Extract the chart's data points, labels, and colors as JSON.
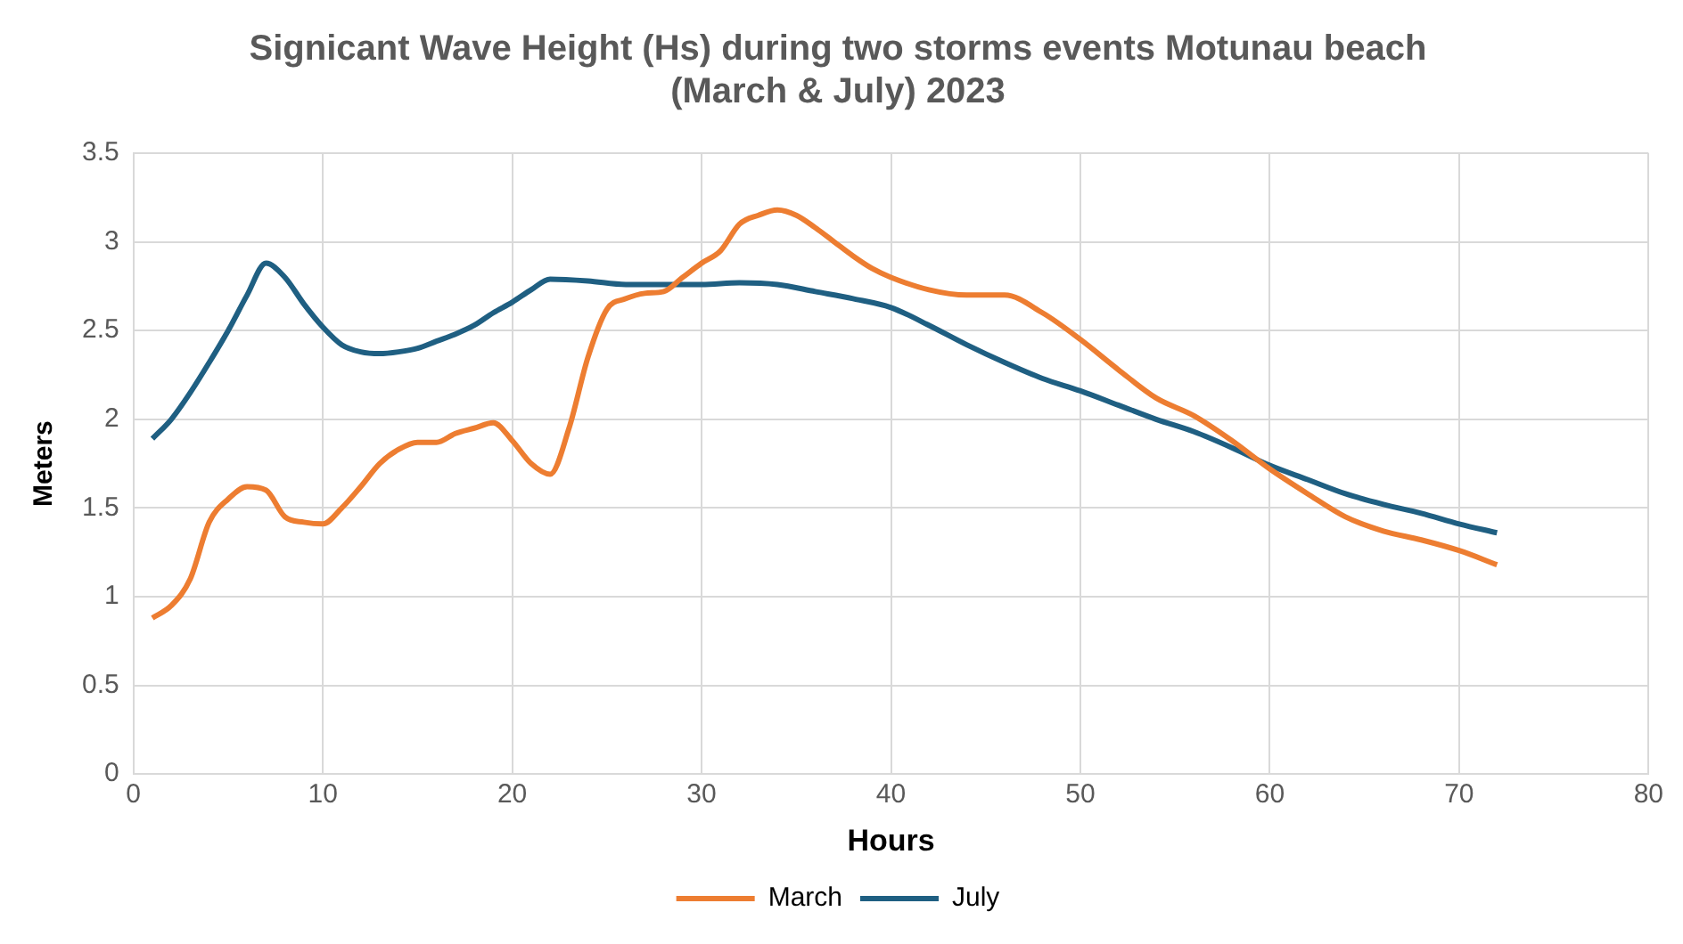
{
  "chart_data": {
    "type": "line",
    "title": "Signicant Wave Height (Hs) during two storms events Motunau beach (March & July) 2023",
    "xlabel": "Hours",
    "ylabel": "Meters",
    "xlim": [
      0,
      80
    ],
    "xticks": [
      0,
      10,
      20,
      30,
      40,
      50,
      60,
      70,
      80
    ],
    "ylim": [
      0,
      3.5
    ],
    "yticks": [
      0,
      0.5,
      1,
      1.5,
      2,
      2.5,
      3,
      3.5
    ],
    "grid": true,
    "legend": "bottom",
    "marker": "none",
    "line_style": "solid",
    "series": [
      {
        "name": "March",
        "color": "#ed7d31",
        "x": [
          1,
          2,
          3,
          4,
          5,
          6,
          7,
          8,
          9,
          10,
          11,
          12,
          13,
          14,
          15,
          16,
          17,
          18,
          19,
          20,
          21,
          22,
          23,
          24,
          25,
          26,
          27,
          28,
          29,
          30,
          31,
          32,
          33,
          34,
          35,
          36,
          37,
          38,
          39,
          40,
          42,
          44,
          46,
          48,
          50,
          52,
          54,
          56,
          58,
          60,
          62,
          64,
          66,
          68,
          70,
          72
        ],
        "values": [
          0.88,
          0.95,
          1.1,
          1.42,
          1.55,
          1.62,
          1.6,
          1.45,
          1.42,
          1.41,
          1.5,
          1.62,
          1.75,
          1.83,
          1.87,
          1.87,
          1.92,
          1.95,
          1.98,
          1.88,
          1.75,
          1.69,
          1.95,
          2.35,
          2.62,
          2.68,
          2.71,
          2.72,
          2.8,
          2.88,
          2.95,
          3.1,
          3.15,
          3.18,
          3.15,
          3.08,
          3.0,
          2.92,
          2.85,
          2.8,
          2.73,
          2.7,
          2.7,
          2.6,
          2.45,
          2.28,
          2.12,
          2.02,
          1.88,
          1.72,
          1.58,
          1.45,
          1.37,
          1.32,
          1.26,
          1.18
        ]
      },
      {
        "name": "July",
        "color": "#1f5f82",
        "x": [
          1,
          2,
          3,
          4,
          5,
          6,
          7,
          8,
          9,
          10,
          11,
          12,
          13,
          14,
          15,
          16,
          17,
          18,
          19,
          20,
          21,
          22,
          24,
          26,
          28,
          30,
          32,
          34,
          36,
          38,
          40,
          42,
          44,
          46,
          48,
          50,
          52,
          54,
          56,
          58,
          60,
          62,
          64,
          66,
          68,
          70,
          72
        ],
        "values": [
          1.89,
          2.0,
          2.15,
          2.32,
          2.5,
          2.7,
          2.88,
          2.8,
          2.65,
          2.52,
          2.42,
          2.38,
          2.37,
          2.38,
          2.4,
          2.44,
          2.48,
          2.53,
          2.6,
          2.66,
          2.73,
          2.79,
          2.78,
          2.76,
          2.76,
          2.76,
          2.77,
          2.76,
          2.72,
          2.68,
          2.63,
          2.53,
          2.42,
          2.32,
          2.23,
          2.16,
          2.08,
          2.0,
          1.93,
          1.84,
          1.74,
          1.66,
          1.58,
          1.52,
          1.47,
          1.41,
          1.36
        ]
      }
    ]
  }
}
